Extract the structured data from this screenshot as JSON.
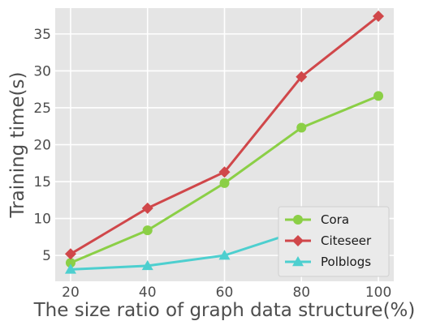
{
  "chart_data": {
    "type": "line",
    "title": "",
    "xlabel": "The size ratio of graph data structure(%)",
    "ylabel": "Training time(s)",
    "x": [
      20,
      40,
      60,
      80,
      100
    ],
    "xlim": [
      16,
      104
    ],
    "ylim": [
      1.5,
      38.5
    ],
    "xticks": [
      20,
      40,
      60,
      80,
      100
    ],
    "yticks": [
      5,
      10,
      15,
      20,
      25,
      30,
      35
    ],
    "grid": true,
    "legend_position": "bottom-right",
    "series": [
      {
        "name": "Cora",
        "color": "#8bcf46",
        "marker": "circle",
        "values": [
          4.0,
          8.4,
          14.8,
          22.3,
          26.6
        ]
      },
      {
        "name": "Citeseer",
        "color": "#d0474a",
        "marker": "diamond",
        "values": [
          5.2,
          11.4,
          16.3,
          29.2,
          37.4
        ]
      },
      {
        "name": "Polblogs",
        "color": "#4dcfcf",
        "marker": "triangle",
        "values": [
          3.1,
          3.6,
          5.0,
          8.4,
          10.4
        ]
      }
    ]
  }
}
